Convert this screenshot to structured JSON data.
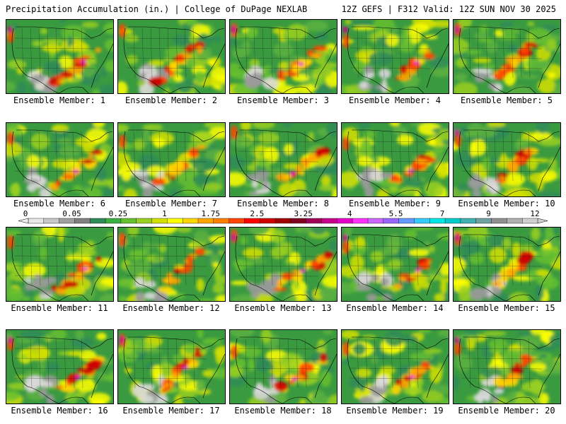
{
  "header": {
    "left_title": "Precipitation Accumulation (in.) | College of DuPage NEXLAB",
    "right_title": "12Z GEFS | F312 Valid: 12Z SUN NOV 30 2025"
  },
  "members": [
    {
      "label": "Ensemble Member: 1"
    },
    {
      "label": "Ensemble Member: 2"
    },
    {
      "label": "Ensemble Member: 3"
    },
    {
      "label": "Ensemble Member: 4"
    },
    {
      "label": "Ensemble Member: 5"
    },
    {
      "label": "Ensemble Member: 6"
    },
    {
      "label": "Ensemble Member: 7"
    },
    {
      "label": "Ensemble Member: 8"
    },
    {
      "label": "Ensemble Member: 9"
    },
    {
      "label": "Ensemble Member: 10"
    },
    {
      "label": "Ensemble Member: 11"
    },
    {
      "label": "Ensemble Member: 12"
    },
    {
      "label": "Ensemble Member: 13"
    },
    {
      "label": "Ensemble Member: 14"
    },
    {
      "label": "Ensemble Member: 15"
    },
    {
      "label": "Ensemble Member: 16"
    },
    {
      "label": "Ensemble Member: 17"
    },
    {
      "label": "Ensemble Member: 18"
    },
    {
      "label": "Ensemble Member: 19"
    },
    {
      "label": "Ensemble Member: 20"
    }
  ],
  "colorbar": {
    "labels": [
      "0",
      "0.05",
      "0.25",
      "1",
      "1.75",
      "2.5",
      "3.25",
      "4",
      "5.5",
      "7",
      "9",
      "12"
    ],
    "colors": [
      "#e8e8e8",
      "#c8c8c8",
      "#a0a0a0",
      "#808080",
      "#2e8b57",
      "#3cb043",
      "#66c030",
      "#9ad020",
      "#d4e000",
      "#ffff00",
      "#ffd700",
      "#ffa500",
      "#ff7f00",
      "#ff4500",
      "#ff0000",
      "#d00000",
      "#a00000",
      "#800020",
      "#a0005a",
      "#c8008c",
      "#e600c8",
      "#ff33ff",
      "#cc66ff",
      "#9966ff",
      "#6699ff",
      "#33ccff",
      "#00e5e5",
      "#00cccc",
      "#40b0b0",
      "#70a0a0",
      "#909090",
      "#b0b0b0",
      "#d0d0d0"
    ]
  }
}
